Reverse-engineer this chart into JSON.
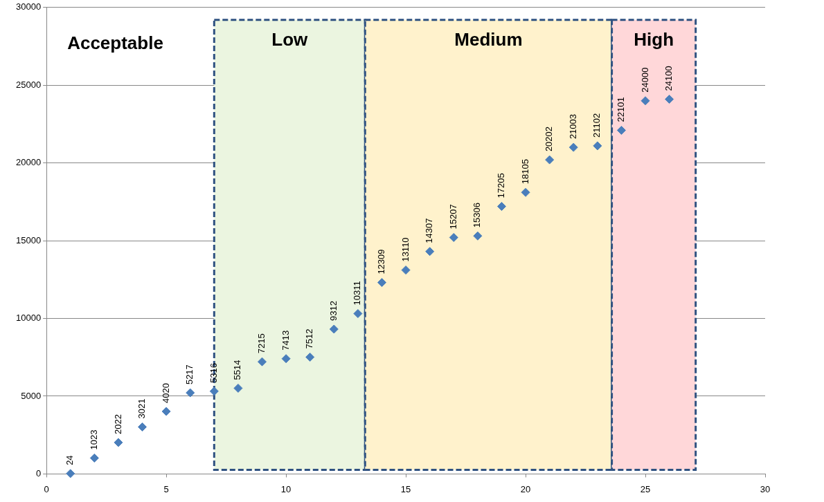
{
  "chart_data": {
    "type": "scatter",
    "x": [
      1,
      2,
      3,
      4,
      5,
      6,
      7,
      8,
      9,
      10,
      11,
      12,
      13,
      14,
      15,
      16,
      17,
      18,
      19,
      20,
      21,
      22,
      23,
      24,
      25,
      26
    ],
    "series": [
      {
        "color": "#4a7ebb",
        "values": [
          24,
          1023,
          2022,
          3021,
          4020,
          5217,
          5316,
          5514,
          7215,
          7413,
          7512,
          9312,
          10311,
          12309,
          13110,
          14307,
          15207,
          15306,
          17205,
          18105,
          20202,
          21003,
          21102,
          22101,
          24000,
          24100
        ]
      }
    ],
    "xlim": [
      0,
      30
    ],
    "xticks": [
      0,
      5,
      10,
      15,
      20,
      25,
      30
    ],
    "ylim": [
      0,
      30000
    ],
    "yticks": [
      0,
      5000,
      10000,
      15000,
      20000,
      25000,
      30000
    ],
    "bands": [
      {
        "axis": "x",
        "from": 7,
        "to": 13.3,
        "label": "Low",
        "color": "#ebf5e0"
      },
      {
        "axis": "x",
        "from": 13.3,
        "to": 23.6,
        "label": "Medium",
        "color": "#fff2cc"
      },
      {
        "axis": "x",
        "from": 23.6,
        "to": 27.1,
        "label": "High",
        "color": "#ffd7d9"
      }
    ],
    "annotations": [
      "Acceptable"
    ],
    "grid": "y",
    "legend": false,
    "marker": "diamond",
    "data_labels": true
  }
}
